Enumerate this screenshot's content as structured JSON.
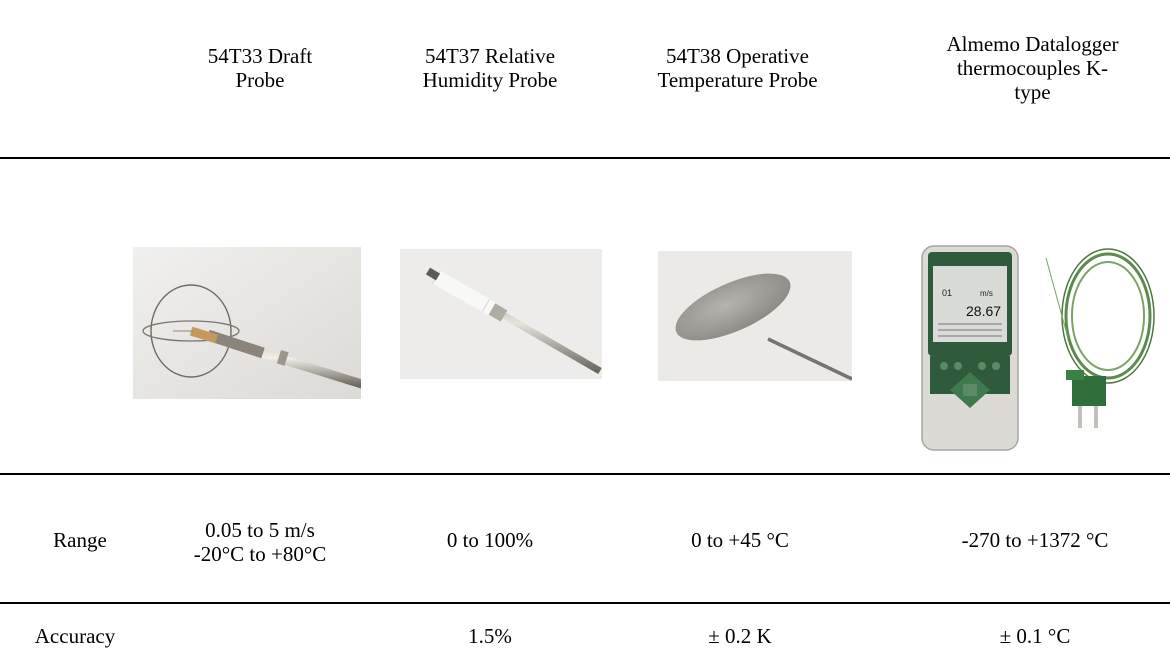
{
  "headers": [
    "54T33 Draft\nProbe",
    "54T37 Relative\nHumidity Probe",
    "54T38 Operative\nTemperature Probe",
    "Almemo Datalogger\nthermocouples K-\ntype"
  ],
  "images": [
    {
      "icon": "draft-probe-photo"
    },
    {
      "icon": "humidity-probe-photo"
    },
    {
      "icon": "operative-temperature-probe-photo"
    },
    {
      "icon": "datalogger-thermocouple-photo",
      "screen_value": "28.67",
      "screen_unit": "m/s",
      "screen_channel": "01"
    }
  ],
  "rows": [
    {
      "label": "Range",
      "values": [
        "0.05 to 5 m/s\n-20°C to +80°C",
        "0 to 100%",
        "0 to +45 °C",
        "-270 to +1372 °C"
      ]
    },
    {
      "label": "Accuracy",
      "values": [
        "",
        "1.5%",
        "± 0.2 K",
        "± 0.1 °C"
      ]
    }
  ]
}
